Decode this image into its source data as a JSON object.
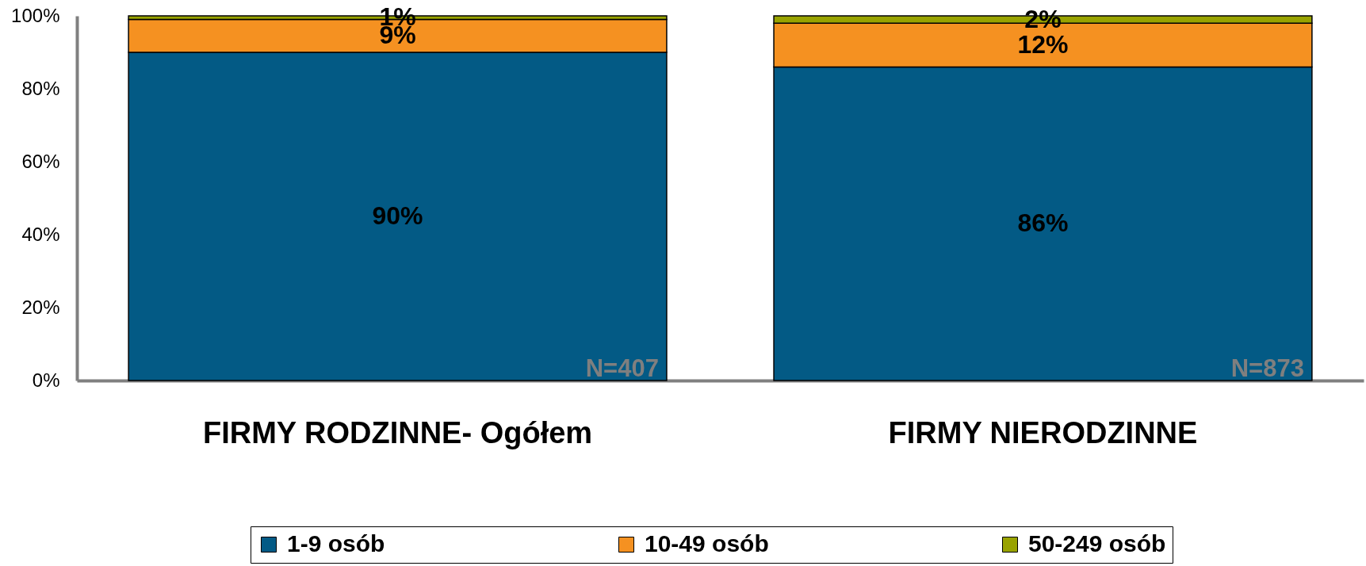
{
  "chart_data": {
    "type": "bar",
    "stacked": true,
    "categories": [
      "FIRMY RODZINNE- Ogółem",
      "FIRMY NIERODZINNE"
    ],
    "series": [
      {
        "name": "1-9 osób",
        "color": "#035a85",
        "values": [
          90,
          86
        ],
        "value_labels": [
          "90%",
          "86%"
        ]
      },
      {
        "name": "10-49 osób",
        "color": "#f59121",
        "values": [
          9,
          12
        ],
        "value_labels": [
          "9%",
          "12%"
        ]
      },
      {
        "name": "50-249 osób",
        "color": "#99a300",
        "values": [
          1,
          2
        ],
        "value_labels": [
          "1%",
          "2%"
        ]
      }
    ],
    "ylim": [
      0,
      100
    ],
    "yticks": [
      {
        "value": 0,
        "label": "0%"
      },
      {
        "value": 20,
        "label": "20%"
      },
      {
        "value": 40,
        "label": "40%"
      },
      {
        "value": 60,
        "label": "60%"
      },
      {
        "value": 80,
        "label": "80%"
      },
      {
        "value": 100,
        "label": "100%"
      }
    ],
    "grid": false,
    "legend": "bottom",
    "annotations": [
      "N=407",
      "N=873"
    ]
  }
}
